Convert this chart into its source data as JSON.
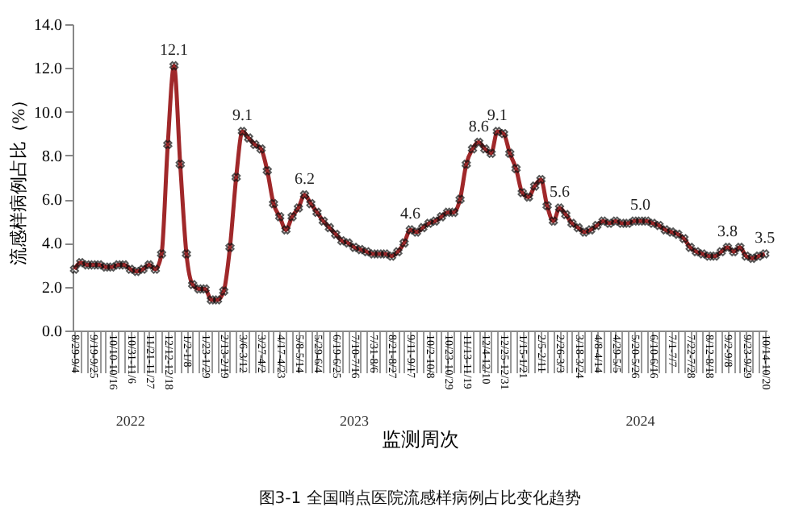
{
  "chart_data": {
    "type": "line",
    "xlabel": "监测周次",
    "ylabel": "流感样病例占比（%）",
    "categories": [
      "8/29-9/4",
      null,
      null,
      "9/19-9/25",
      null,
      null,
      "10/10-10/16",
      null,
      null,
      "10/31-11/6",
      null,
      null,
      "11/21-11/27",
      null,
      null,
      "12/12-12/18",
      null,
      null,
      "1/2-1/8",
      null,
      null,
      "1/23-1/29",
      null,
      null,
      "2/13-2/19",
      null,
      null,
      "3/6-3/12",
      null,
      null,
      "3/27-4/2",
      null,
      null,
      "4/17-4/23",
      null,
      null,
      "5/8-5/14",
      null,
      null,
      "5/29-6/4",
      null,
      null,
      "6/19-6/25",
      null,
      null,
      "7/10-7/16",
      null,
      null,
      "7/31-8/6",
      null,
      null,
      "8/21-8/27",
      null,
      null,
      "9/11-9/17",
      null,
      null,
      "10/2-10/8",
      null,
      null,
      "10/23-10/29",
      null,
      null,
      "11/13-11/19",
      null,
      null,
      "12/4-12/10",
      null,
      null,
      "12/25-12/31",
      null,
      null,
      "1/15-1/21",
      null,
      null,
      "2/5-2/11",
      null,
      null,
      "2/26-3/3",
      null,
      null,
      "3/18-3/24",
      null,
      null,
      "4/8-4/14",
      null,
      null,
      "4/29-5/5",
      null,
      null,
      "5/20-5/26",
      null,
      null,
      "6/10-6/16",
      null,
      null,
      "7/1-7/7",
      null,
      null,
      "7/22-7/28",
      null,
      null,
      "8/12-8/18",
      null,
      null,
      "9/2-9/8",
      null,
      null,
      "9/23-9/29",
      null,
      null,
      "10/14-10/20"
    ],
    "series": [
      {
        "color": "#a0282a",
        "values": [
          2.8,
          3.1,
          3.0,
          3.0,
          3.0,
          2.9,
          2.9,
          3.0,
          3.0,
          2.8,
          2.7,
          2.8,
          3.0,
          2.8,
          3.5,
          8.5,
          12.1,
          7.6,
          3.5,
          2.1,
          1.9,
          1.9,
          1.4,
          1.4,
          1.8,
          3.8,
          7.0,
          9.1,
          8.8,
          8.5,
          8.3,
          7.3,
          5.8,
          5.2,
          4.6,
          5.2,
          5.6,
          6.2,
          5.8,
          5.4,
          5.0,
          4.7,
          4.4,
          4.1,
          4.0,
          3.8,
          3.7,
          3.6,
          3.5,
          3.5,
          3.5,
          3.4,
          3.6,
          4.0,
          4.6,
          4.5,
          4.7,
          4.9,
          5.0,
          5.2,
          5.4,
          5.4,
          6.0,
          7.6,
          8.3,
          8.6,
          8.3,
          8.1,
          9.1,
          9.0,
          8.1,
          7.4,
          6.3,
          6.1,
          6.6,
          6.9,
          5.7,
          5.0,
          5.6,
          5.3,
          4.9,
          4.7,
          4.5,
          4.6,
          4.8,
          5.0,
          4.9,
          5.0,
          4.9,
          4.9,
          5.0,
          5.0,
          5.0,
          4.9,
          4.8,
          4.6,
          4.5,
          4.4,
          4.2,
          3.8,
          3.6,
          3.5,
          3.4,
          3.4,
          3.6,
          3.8,
          3.6,
          3.8,
          3.4,
          3.3,
          3.4,
          3.5
        ],
        "value_labels": [
          null,
          null,
          null,
          null,
          null,
          null,
          null,
          null,
          null,
          null,
          null,
          null,
          null,
          null,
          null,
          null,
          "12.1",
          null,
          null,
          null,
          null,
          null,
          null,
          null,
          null,
          null,
          null,
          "9.1",
          null,
          null,
          null,
          null,
          null,
          null,
          null,
          null,
          null,
          "6.2",
          null,
          null,
          null,
          null,
          null,
          null,
          null,
          null,
          null,
          null,
          null,
          null,
          null,
          null,
          null,
          null,
          "4.6",
          null,
          null,
          null,
          null,
          null,
          null,
          null,
          null,
          null,
          null,
          "8.6",
          null,
          null,
          "9.1",
          null,
          null,
          null,
          null,
          null,
          null,
          null,
          null,
          null,
          "5.6",
          null,
          null,
          null,
          null,
          null,
          null,
          null,
          null,
          null,
          null,
          null,
          null,
          "5.0",
          null,
          null,
          null,
          null,
          null,
          null,
          null,
          null,
          null,
          null,
          null,
          null,
          null,
          "3.8",
          null,
          null,
          null,
          null,
          null,
          "3.5"
        ]
      }
    ],
    "ylim": [
      0,
      14
    ],
    "yticks": [
      {
        "value": 0,
        "label": "0.0"
      },
      {
        "value": 2,
        "label": "2.0"
      },
      {
        "value": 4,
        "label": "4.0"
      },
      {
        "value": 6,
        "label": "6.0"
      },
      {
        "value": 8,
        "label": "8.0"
      },
      {
        "value": 10,
        "label": "10.0"
      },
      {
        "value": 12,
        "label": "12.0"
      },
      {
        "value": 14,
        "label": "14.0"
      }
    ],
    "grid": false,
    "marker": "cross",
    "line_style": "solid",
    "annotations": [
      "2022",
      "2023",
      "2024",
      "图3-1 全国哨点医院流感样病例占比变化趋势"
    ]
  }
}
